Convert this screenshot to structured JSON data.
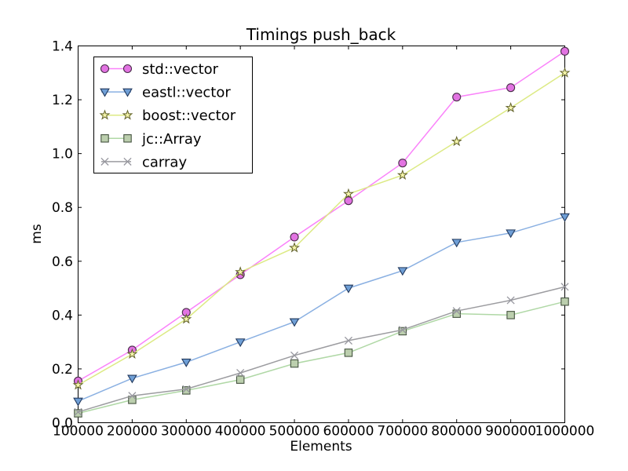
{
  "figure": {
    "background": "#ffffff",
    "axis_color": "#000000"
  },
  "chart_data": {
    "type": "line",
    "title": "Timings push_back",
    "xlabel": "Elements",
    "ylabel": "ms",
    "grid": false,
    "legend_position": "upper left",
    "xlim": [
      100000,
      1000000
    ],
    "ylim": [
      0.0,
      1.4
    ],
    "x": [
      100000,
      200000,
      300000,
      400000,
      500000,
      600000,
      700000,
      800000,
      900000,
      1000000
    ],
    "x_tick_labels": [
      "100000",
      "200000",
      "300000",
      "400000",
      "500000",
      "600000",
      "700000",
      "800000",
      "900000",
      "1000000"
    ],
    "y_ticks": [
      0.0,
      0.2,
      0.4,
      0.6,
      0.8,
      1.0,
      1.2,
      1.4
    ],
    "y_tick_labels": [
      "0.0",
      "0.2",
      "0.4",
      "0.6",
      "0.8",
      "1.0",
      "1.2",
      "1.4"
    ],
    "series": [
      {
        "name": "std::vector",
        "marker": "circle",
        "line_color": "#fa82fa",
        "marker_fill": "#e273e2",
        "marker_edge": "#4a2d4a",
        "values": [
          0.155,
          0.27,
          0.41,
          0.55,
          0.69,
          0.825,
          0.965,
          1.21,
          1.245,
          1.38
        ]
      },
      {
        "name": "eastl::vector",
        "marker": "triangle-down",
        "line_color": "#8ab0e2",
        "marker_fill": "#6f9fd6",
        "marker_edge": "#233a5e",
        "values": [
          0.08,
          0.165,
          0.225,
          0.3,
          0.375,
          0.5,
          0.565,
          0.67,
          0.705,
          0.765
        ]
      },
      {
        "name": "boost::vector",
        "marker": "star",
        "line_color": "#dcea84",
        "marker_fill": "#f6f6ac",
        "marker_edge": "#606028",
        "values": [
          0.14,
          0.255,
          0.385,
          0.56,
          0.65,
          0.85,
          0.92,
          1.045,
          1.17,
          1.3
        ]
      },
      {
        "name": "jc::Array",
        "marker": "square",
        "line_color": "#b0d8a6",
        "marker_fill": "#bccfae",
        "marker_edge": "#44523f",
        "values": [
          0.035,
          0.085,
          0.12,
          0.16,
          0.22,
          0.26,
          0.34,
          0.405,
          0.4,
          0.45
        ]
      },
      {
        "name": "carray",
        "marker": "x",
        "line_color": "#9c9ca0",
        "marker_fill": "none",
        "marker_edge": "#97979f",
        "values": [
          0.04,
          0.1,
          0.125,
          0.185,
          0.25,
          0.305,
          0.345,
          0.415,
          0.455,
          0.505
        ]
      }
    ]
  }
}
